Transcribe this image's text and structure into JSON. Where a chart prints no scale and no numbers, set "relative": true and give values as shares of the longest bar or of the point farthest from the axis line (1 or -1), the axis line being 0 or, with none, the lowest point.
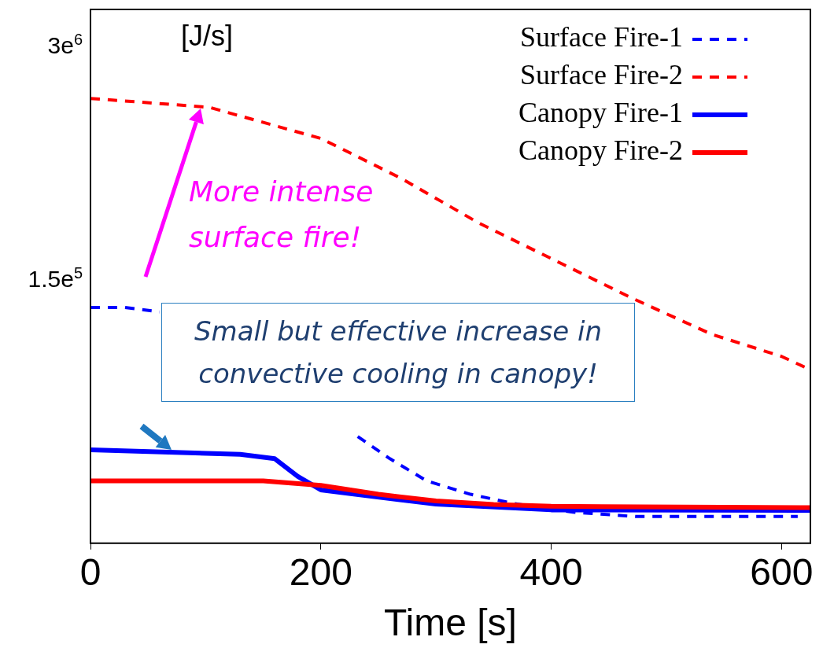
{
  "chart_data": {
    "type": "line",
    "relative": true,
    "xlabel": "Time [s]",
    "ylabel": "[J/s]",
    "xlim": [
      0,
      625
    ],
    "xticks": [
      0,
      200,
      400,
      600
    ],
    "marker": "none",
    "legend": "top right",
    "annotations": [
      "More intense surface fire!",
      "Small but effective increase in convective cooling in canopy!",
      "3e$^{6}$",
      "1.5e$^{5}$"
    ],
    "series": [
      {
        "name": "Surface Fire-1",
        "color": "#0000ff",
        "line_style": "dashed",
        "x": [
          0,
          30,
          60,
          150,
          232,
          260,
          292,
          330,
          366,
          419,
          473,
          550,
          614
        ],
        "values": [
          0.53,
          0.53,
          0.52,
          null,
          0.24,
          0.19,
          0.14,
          0.11,
          0.09,
          0.07,
          0.06,
          0.06,
          0.06
        ]
      },
      {
        "name": "Surface Fire-2",
        "color": "#ff0000",
        "line_style": "dashed",
        "x": [
          0,
          103,
          200,
          270,
          337,
          400,
          471,
          539,
          600,
          625
        ],
        "values": [
          1,
          0.98,
          0.91,
          0.82,
          0.72,
          0.64,
          0.55,
          0.47,
          0.42,
          0.39
        ]
      },
      {
        "name": "Canopy Fire-1",
        "color": "#0000ff",
        "line_style": "solid",
        "x": [
          0,
          130,
          160,
          180,
          200,
          230,
          300,
          400,
          625
        ],
        "values": [
          0.21,
          0.2,
          0.19,
          0.15,
          0.12,
          0.11,
          0.088,
          0.075,
          0.074
        ]
      },
      {
        "name": "Canopy Fire-2",
        "color": "#ff0000",
        "line_style": "solid",
        "x": [
          0,
          150,
          200,
          250,
          300,
          350,
          400,
          625
        ],
        "values": [
          0.14,
          0.14,
          0.13,
          0.11,
          0.095,
          0.087,
          0.083,
          0.08
        ]
      }
    ]
  }
}
